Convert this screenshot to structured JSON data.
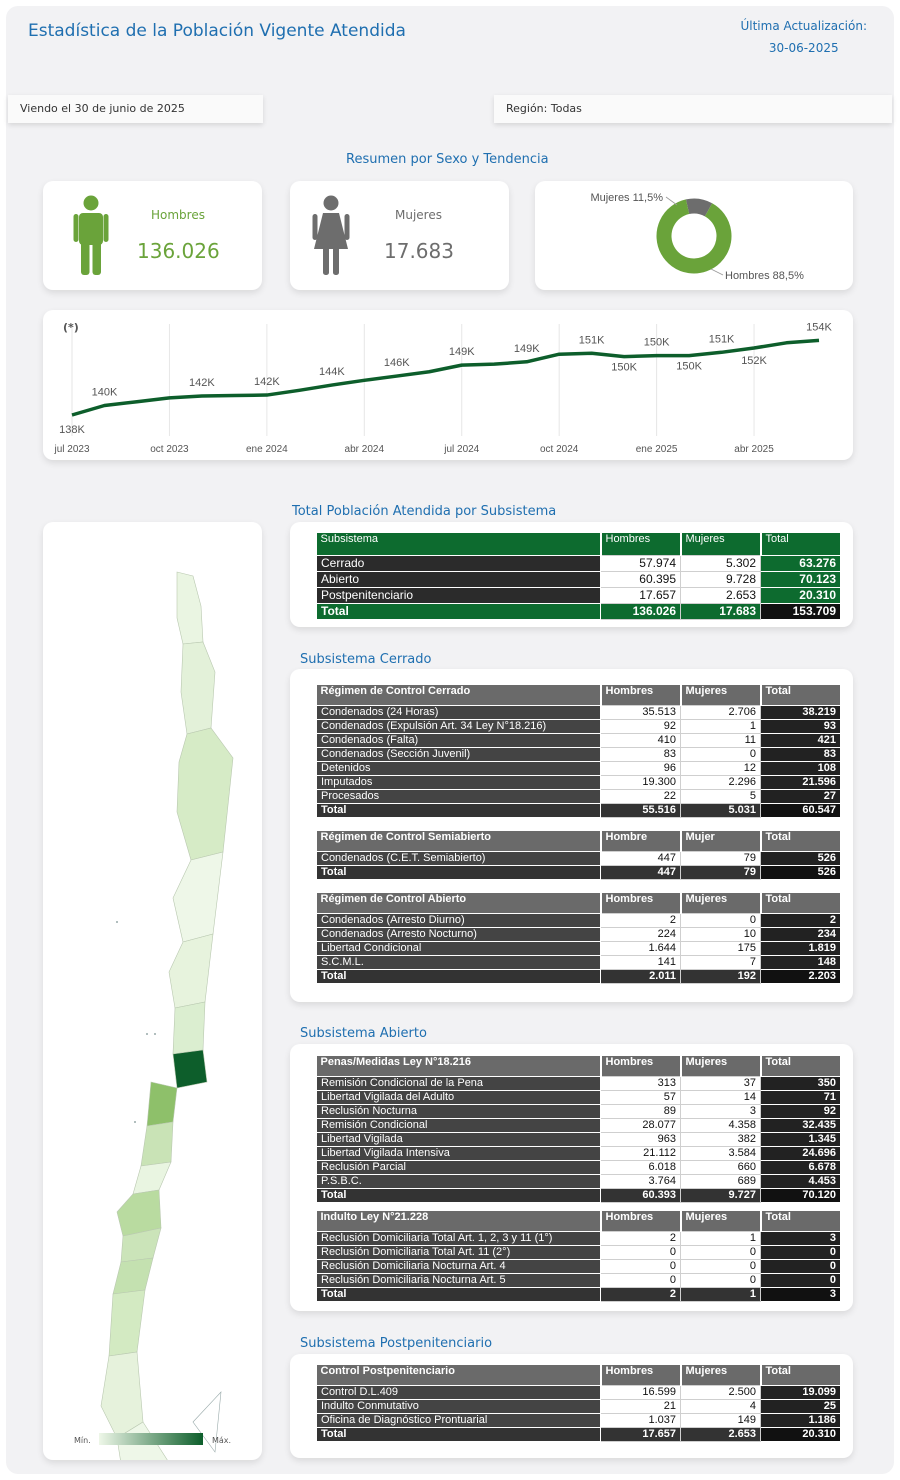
{
  "header": {
    "title": "Estadística de la Población Vigente Atendida",
    "update_label": "Última Actualización:",
    "update_date": "30-06-2025"
  },
  "filters": {
    "date_text": "Viendo el 30 de junio de 2025",
    "region_text": "Región: Todas"
  },
  "sections": {
    "summary": "Resumen por Sexo y Tendencia",
    "total": "Total Población Atendida por Subsistema",
    "cerrado": "Subsistema Cerrado",
    "abierto": "Subsistema Abierto",
    "post": "Subsistema Postpenitenciario"
  },
  "kpis": {
    "hombres_label": "Hombres",
    "hombres_value": "136.026",
    "mujeres_label": "Mujeres",
    "mujeres_value": "17.683"
  },
  "colors": {
    "accent": "#1f6fb0",
    "green": "#0d6b2f",
    "men": "#6aa33a",
    "women": "#6d6d6d"
  },
  "chart_data": [
    {
      "type": "pie",
      "labels": [
        "Hombres 88,5%",
        "Mujeres 11,5%"
      ],
      "values": [
        88.5,
        11.5
      ],
      "colors": [
        "#6aa33a",
        "#6d6d6d"
      ]
    },
    {
      "type": "line",
      "title": "(*)",
      "x_ticks": [
        "jul 2023",
        "oct 2023",
        "ene 2024",
        "abr 2024",
        "jul 2024",
        "oct 2024",
        "ene 2025",
        "abr 2025"
      ],
      "x": [
        "2023-07",
        "2023-08",
        "2023-09",
        "2023-10",
        "2023-11",
        "2023-12",
        "2024-01",
        "2024-02",
        "2024-03",
        "2024-04",
        "2024-05",
        "2024-06",
        "2024-07",
        "2024-08",
        "2024-09",
        "2024-10",
        "2024-11",
        "2024-12",
        "2025-01",
        "2025-02",
        "2025-03",
        "2025-04",
        "2025-05",
        "2025-06"
      ],
      "values": [
        138,
        140,
        140.8,
        141.6,
        142,
        142.1,
        142.2,
        143.2,
        144.3,
        145.3,
        146.2,
        147.1,
        148.5,
        148.7,
        149.2,
        150.8,
        151,
        150.3,
        150.5,
        150.5,
        151.2,
        152.1,
        153.2,
        153.7
      ],
      "labels": [
        "138K",
        "140K",
        "",
        "",
        "142K",
        "",
        "142K",
        "",
        "144K",
        "",
        "146K",
        "",
        "149K",
        "",
        "149K",
        "",
        "151K",
        "150K",
        "150K",
        "150K",
        "151K",
        "152K",
        "",
        "154K"
      ],
      "ylim": [
        134,
        158
      ],
      "color": "#0d5e2b"
    }
  ],
  "map": {
    "legend_min": "Mín.",
    "legend_max": "Máx.",
    "color_min": "#eef7e8",
    "color_max": "#0d5e2b"
  },
  "table_total": {
    "headers": [
      "Subsistema",
      "Hombres",
      "Mujeres",
      "Total"
    ],
    "rows": [
      [
        "Cerrado",
        "57.974",
        "5.302",
        "63.276"
      ],
      [
        "Abierto",
        "60.395",
        "9.728",
        "70.123"
      ],
      [
        "Postpenitenciario",
        "17.657",
        "2.653",
        "20.310"
      ]
    ],
    "total": [
      "Total",
      "136.026",
      "17.683",
      "153.709"
    ]
  },
  "cerrado_tables": [
    {
      "headers": [
        "Régimen de Control Cerrado",
        "Hombres",
        "Mujeres",
        "Total"
      ],
      "rows": [
        [
          "Condenados (24 Horas)",
          "35.513",
          "2.706",
          "38.219"
        ],
        [
          "Condenados (Expulsión Art. 34 Ley N°18.216)",
          "92",
          "1",
          "93"
        ],
        [
          "Condenados (Falta)",
          "410",
          "11",
          "421"
        ],
        [
          "Condenados (Sección Juvenil)",
          "83",
          "0",
          "83"
        ],
        [
          "Detenidos",
          "96",
          "12",
          "108"
        ],
        [
          "Imputados",
          "19.300",
          "2.296",
          "21.596"
        ],
        [
          "Procesados",
          "22",
          "5",
          "27"
        ]
      ],
      "total": [
        "Total",
        "55.516",
        "5.031",
        "60.547"
      ]
    },
    {
      "headers": [
        "Régimen de Control Semiabierto",
        "Hombre",
        "Mujer",
        "Total"
      ],
      "rows": [
        [
          "Condenados (C.E.T. Semiabierto)",
          "447",
          "79",
          "526"
        ]
      ],
      "total": [
        "Total",
        "447",
        "79",
        "526"
      ]
    },
    {
      "headers": [
        "Régimen de Control Abierto",
        "Hombres",
        "Mujeres",
        "Total"
      ],
      "rows": [
        [
          "Condenados (Arresto Diurno)",
          "2",
          "0",
          "2"
        ],
        [
          "Condenados (Arresto Nocturno)",
          "224",
          "10",
          "234"
        ],
        [
          "Libertad Condicional",
          "1.644",
          "175",
          "1.819"
        ],
        [
          "S.C.M.L.",
          "141",
          "7",
          "148"
        ]
      ],
      "total": [
        "Total",
        "2.011",
        "192",
        "2.203"
      ]
    }
  ],
  "abierto_tables": [
    {
      "headers": [
        "Penas/Medidas Ley N°18.216",
        "Hombres",
        "Mujeres",
        "Total"
      ],
      "rows": [
        [
          "Remisión Condicional de la Pena",
          "313",
          "37",
          "350"
        ],
        [
          "Libertad Vigilada del Adulto",
          "57",
          "14",
          "71"
        ],
        [
          "Reclusión Nocturna",
          "89",
          "3",
          "92"
        ],
        [
          "Remisión Condicional",
          "28.077",
          "4.358",
          "32.435"
        ],
        [
          "Libertad Vigilada",
          "963",
          "382",
          "1.345"
        ],
        [
          "Libertad Vigilada Intensiva",
          "21.112",
          "3.584",
          "24.696"
        ],
        [
          "Reclusión Parcial",
          "6.018",
          "660",
          "6.678"
        ],
        [
          "P.S.B.C.",
          "3.764",
          "689",
          "4.453"
        ]
      ],
      "total": [
        "Total",
        "60.393",
        "9.727",
        "70.120"
      ]
    },
    {
      "headers": [
        "Indulto Ley N°21.228",
        "Hombres",
        "Mujeres",
        "Total"
      ],
      "rows": [
        [
          "Reclusión Domiciliaria Total Art. 1, 2, 3 y 11 (1°)",
          "2",
          "1",
          "3"
        ],
        [
          "Reclusión Domiciliaria Total Art. 11 (2°)",
          "0",
          "0",
          "0"
        ],
        [
          "Reclusión Domiciliaria Nocturna Art. 4",
          "0",
          "0",
          "0"
        ],
        [
          "Reclusión Domiciliaria Nocturna Art. 5",
          "0",
          "0",
          "0"
        ]
      ],
      "total": [
        "Total",
        "2",
        "1",
        "3"
      ]
    }
  ],
  "post_tables": [
    {
      "headers": [
        "Control Postpenitenciario",
        "Hombres",
        "Mujeres",
        "Total"
      ],
      "rows": [
        [
          "Control D.L.409",
          "16.599",
          "2.500",
          "19.099"
        ],
        [
          "Indulto Conmutativo",
          "21",
          "4",
          "25"
        ],
        [
          "Oficina de Diagnóstico Prontuarial",
          "1.037",
          "149",
          "1.186"
        ]
      ],
      "total": [
        "Total",
        "17.657",
        "2.653",
        "20.310"
      ]
    }
  ]
}
